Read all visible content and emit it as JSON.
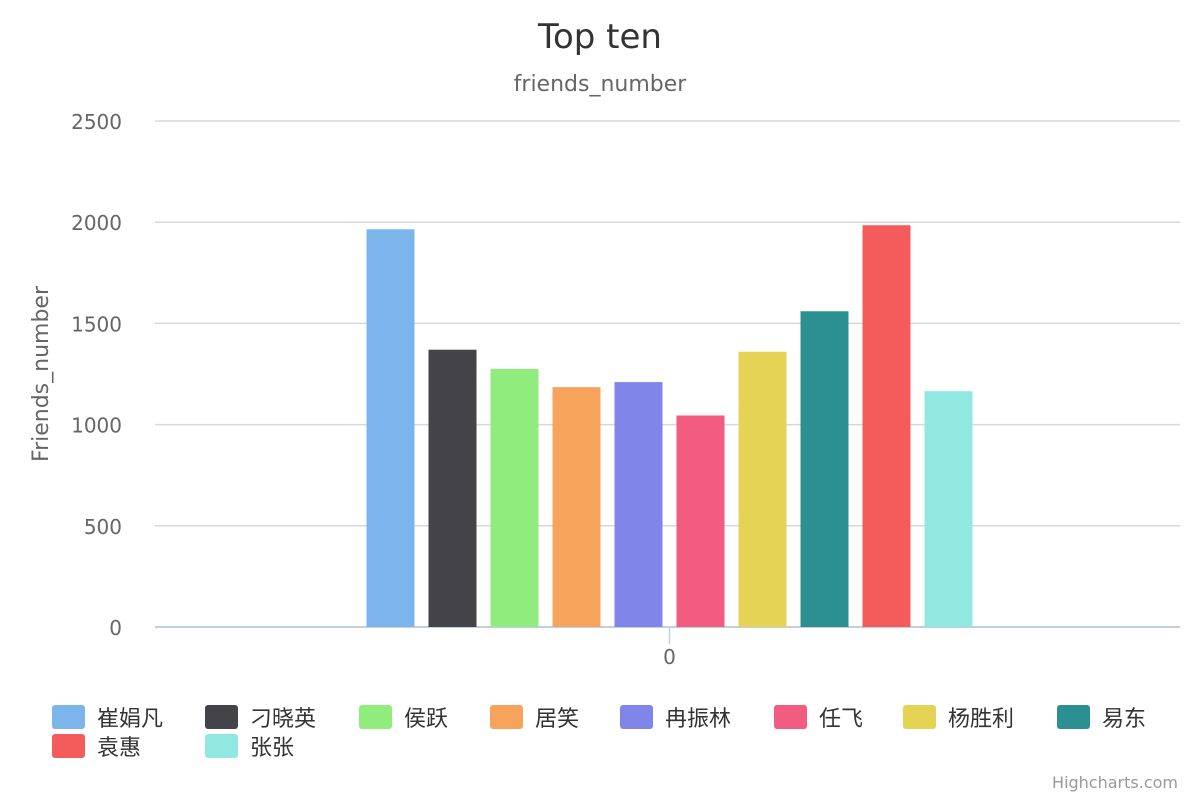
{
  "chart_data": {
    "type": "bar",
    "title": "Top ten",
    "subtitle": "friends_number",
    "xlabel": "",
    "ylabel": "Friends_number",
    "categories": [
      "0"
    ],
    "ylim": [
      0,
      2500
    ],
    "yticks": [
      0,
      500,
      1000,
      1500,
      2000,
      2500
    ],
    "grid": true,
    "legend_position": "bottom",
    "series": [
      {
        "name": "崔娟凡",
        "value": 1965,
        "color": "#7cb5ec"
      },
      {
        "name": "刁晓英",
        "value": 1370,
        "color": "#434348"
      },
      {
        "name": "侯跃",
        "value": 1275,
        "color": "#90ed7d"
      },
      {
        "name": "居笑",
        "value": 1185,
        "color": "#f7a35c"
      },
      {
        "name": "冉振林",
        "value": 1210,
        "color": "#8085e9"
      },
      {
        "name": "任飞",
        "value": 1045,
        "color": "#f15c80"
      },
      {
        "name": "杨胜利",
        "value": 1360,
        "color": "#e4d354"
      },
      {
        "name": "易东",
        "value": 1560,
        "color": "#2b908f"
      },
      {
        "name": "袁惠",
        "value": 1985,
        "color": "#f45b5b"
      },
      {
        "name": "张张",
        "value": 1165,
        "color": "#91e8e1"
      }
    ]
  },
  "credits": "Highcharts.com"
}
